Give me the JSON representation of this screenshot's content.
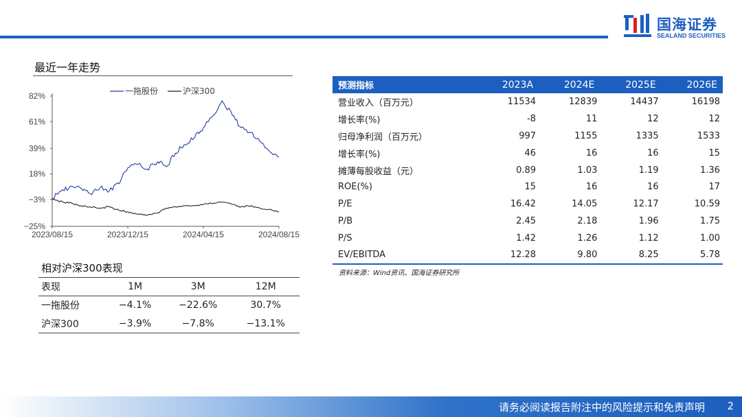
{
  "header": {
    "logo_cn": "国海证券",
    "logo_en": "SEALAND SECURITIES",
    "brand_color": "#1d5fbf"
  },
  "trend": {
    "title": "最近一年走势"
  },
  "chart_data": {
    "type": "line",
    "title": "",
    "xlabel": "",
    "ylabel": "",
    "x_ticks": [
      "2023/08/15",
      "2023/12/15",
      "2024/04/15",
      "2024/08/15"
    ],
    "y_ticks": [
      "82%",
      "61%",
      "39%",
      "18%",
      "−3%",
      "−25%"
    ],
    "y_tick_values": [
      82,
      61,
      39,
      18,
      -3,
      -25
    ],
    "ylim": [
      -25,
      82
    ],
    "legend": "top",
    "grid": false,
    "series": [
      {
        "name": "一拖股份",
        "color": "#1f3f9a",
        "x": [
          "2023/08/15",
          "2023/09/01",
          "2023/09/15",
          "2023/10/01",
          "2023/10/15",
          "2023/11/01",
          "2023/11/15",
          "2023/12/01",
          "2023/12/15",
          "2024/01/01",
          "2024/01/15",
          "2024/02/01",
          "2024/02/15",
          "2024/03/01",
          "2024/03/15",
          "2024/04/01",
          "2024/04/15",
          "2024/05/01",
          "2024/05/15",
          "2024/06/01",
          "2024/06/15",
          "2024/07/01",
          "2024/07/15",
          "2024/08/01",
          "2024/08/15"
        ],
        "values": [
          -2,
          5,
          8,
          6,
          2,
          7,
          4,
          10,
          23,
          26,
          22,
          28,
          24,
          35,
          42,
          48,
          56,
          66,
          78,
          66,
          56,
          52,
          45,
          36,
          32
        ]
      },
      {
        "name": "沪深300",
        "color": "#222222",
        "x": [
          "2023/08/15",
          "2023/09/01",
          "2023/09/15",
          "2023/10/01",
          "2023/10/15",
          "2023/11/01",
          "2023/11/15",
          "2023/12/01",
          "2023/12/15",
          "2024/01/01",
          "2024/01/15",
          "2024/02/01",
          "2024/02/15",
          "2024/03/01",
          "2024/03/15",
          "2024/04/01",
          "2024/04/15",
          "2024/05/01",
          "2024/05/15",
          "2024/06/01",
          "2024/06/15",
          "2024/07/01",
          "2024/07/15",
          "2024/08/01",
          "2024/08/15"
        ],
        "values": [
          -3,
          -5,
          -6,
          -8,
          -9,
          -10,
          -9,
          -12,
          -13,
          -15,
          -16,
          -14,
          -10,
          -9,
          -8,
          -8,
          -7,
          -6,
          -5,
          -7,
          -9,
          -8,
          -10,
          -11,
          -13
        ]
      }
    ]
  },
  "relative": {
    "title": "相对沪深300表现",
    "header": [
      "表现",
      "1M",
      "3M",
      "12M"
    ],
    "rows": [
      [
        "一拖股份",
        "−4.1%",
        "−22.6%",
        "30.7%"
      ],
      [
        "沪深300",
        "−3.9%",
        "−7.8%",
        "−13.1%"
      ]
    ]
  },
  "forecast": {
    "header": [
      "预测指标",
      "2023A",
      "2024E",
      "2025E",
      "2026E"
    ],
    "rows": [
      [
        "营业收入（百万元）",
        "11534",
        "12839",
        "14437",
        "16198"
      ],
      [
        "增长率(%)",
        "-8",
        "11",
        "12",
        "12"
      ],
      [
        "归母净利润（百万元）",
        "997",
        "1155",
        "1335",
        "1533"
      ],
      [
        "增长率(%)",
        "46",
        "16",
        "16",
        "15"
      ],
      [
        "摊薄每股收益（元）",
        "0.89",
        "1.03",
        "1.19",
        "1.36"
      ],
      [
        "ROE(%)",
        "15",
        "16",
        "16",
        "17"
      ],
      [
        "P/E",
        "16.42",
        "14.05",
        "12.17",
        "10.59"
      ],
      [
        "P/B",
        "2.45",
        "2.18",
        "1.96",
        "1.75"
      ],
      [
        "P/S",
        "1.42",
        "1.26",
        "1.12",
        "1.00"
      ],
      [
        "EV/EBITDA",
        "12.28",
        "9.80",
        "8.25",
        "5.78"
      ]
    ],
    "source": "资料来源：Wind资讯、国海证券研究所"
  },
  "footer": {
    "disclaimer": "请务必阅读报告附注中的风险提示和免责声明",
    "page_number": "2"
  }
}
